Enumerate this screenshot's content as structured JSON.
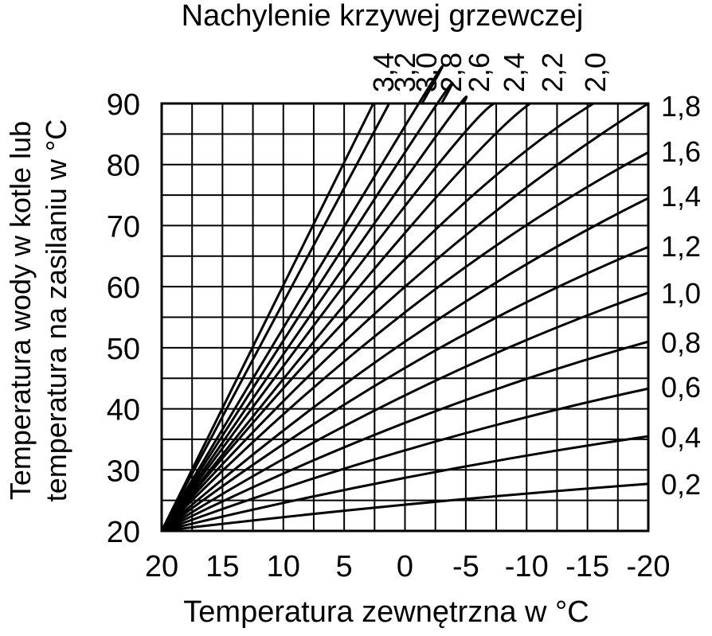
{
  "chart_data": {
    "type": "line",
    "title": "Nachylenie krzywej grzewczej",
    "xlabel": "Temperatura zewnętrzna w °C",
    "ylabel": [
      "Temperatura wody w kotle lub",
      "temperatura na zasilaniu w °C"
    ],
    "xlim": [
      20,
      -20
    ],
    "ylim": [
      20,
      90
    ],
    "x_ticks": [
      20,
      15,
      10,
      5,
      0,
      -5,
      -10,
      -15,
      -20
    ],
    "x_tick_labels": [
      "20",
      "15",
      "10",
      "5",
      "0",
      "-5",
      "-10",
      "-15",
      "-20"
    ],
    "y_ticks": [
      20,
      30,
      40,
      50,
      60,
      70,
      80,
      90
    ],
    "y_tick_labels": [
      "20",
      "30",
      "40",
      "50",
      "60",
      "70",
      "80",
      "90"
    ],
    "grid": true,
    "right_labels": [
      "1,8",
      "1,6",
      "1,4",
      "1,2",
      "1,0",
      "0,8",
      "0,6",
      "0,4",
      "0,2"
    ],
    "top_labels": [
      "3,4",
      "3,2",
      "3,0",
      "2,8",
      "2,6",
      "2,4",
      "2,2",
      "2,0"
    ],
    "series": [
      {
        "name": "0,2",
        "x": [
          20,
          0,
          -20
        ],
        "y": [
          20,
          24.3,
          27.7
        ]
      },
      {
        "name": "0,4",
        "x": [
          20,
          0,
          -20
        ],
        "y": [
          20,
          28.7,
          35.5
        ]
      },
      {
        "name": "0,6",
        "x": [
          20,
          0,
          -20
        ],
        "y": [
          20,
          33.2,
          43.3
        ]
      },
      {
        "name": "0,8",
        "x": [
          20,
          0,
          -20
        ],
        "y": [
          20,
          37.7,
          51.0
        ]
      },
      {
        "name": "1,0",
        "x": [
          20,
          0,
          -20
        ],
        "y": [
          20,
          42.2,
          59.0
        ]
      },
      {
        "name": "1,2",
        "x": [
          20,
          0,
          -20
        ],
        "y": [
          20,
          46.7,
          66.5
        ]
      },
      {
        "name": "1,4",
        "x": [
          20,
          0,
          -20
        ],
        "y": [
          20,
          51.0,
          74.5
        ]
      },
      {
        "name": "1,6",
        "x": [
          20,
          0,
          -20
        ],
        "y": [
          20,
          55.8,
          82.0
        ]
      },
      {
        "name": "1,8",
        "x": [
          20,
          0,
          -20
        ],
        "y": [
          20,
          60.0,
          90.0
        ]
      },
      {
        "name": "2,0",
        "x": [
          20,
          0,
          -15.5
        ],
        "y": [
          20,
          64.5,
          90.0
        ]
      },
      {
        "name": "2,2",
        "x": [
          20,
          0,
          -10.3
        ],
        "y": [
          20,
          68.8,
          90.0
        ]
      },
      {
        "name": "2,4",
        "x": [
          20,
          0,
          -7.5
        ],
        "y": [
          20,
          73.2,
          90.0
        ]
      },
      {
        "name": "2,6",
        "x": [
          20,
          0,
          -4.8
        ],
        "y": [
          20,
          77.5,
          90.0
        ]
      },
      {
        "name": "2,8",
        "x": [
          20,
          0,
          -3.0
        ],
        "y": [
          20,
          82.0,
          90.0
        ]
      },
      {
        "name": "3,0",
        "x": [
          20,
          0,
          -1.4
        ],
        "y": [
          20,
          86.3,
          90.0
        ]
      },
      {
        "name": "3,2",
        "x": [
          20,
          1.3
        ],
        "y": [
          20,
          90.0
        ]
      },
      {
        "name": "3,4",
        "x": [
          20,
          2.6
        ],
        "y": [
          20,
          90.0
        ]
      }
    ]
  }
}
